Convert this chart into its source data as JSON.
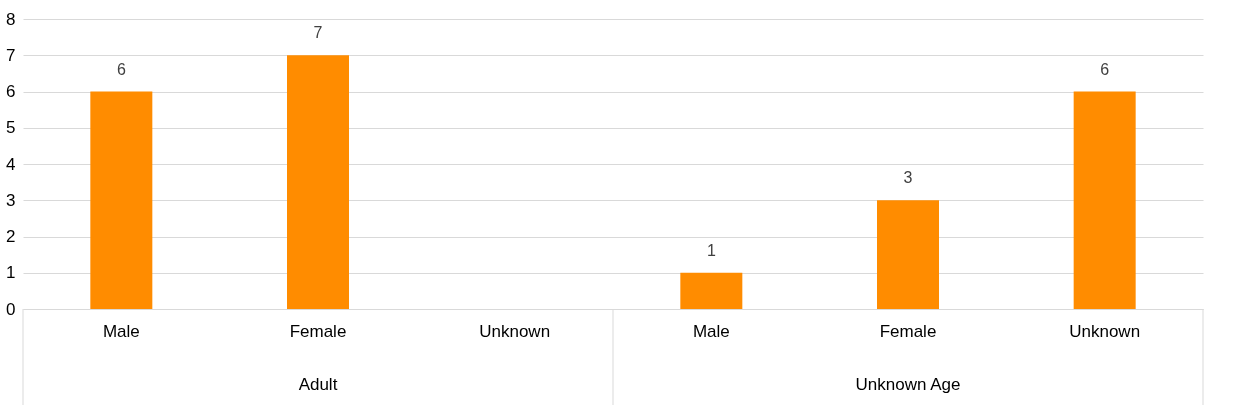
{
  "chart_data": {
    "type": "bar",
    "categories": [
      "Male",
      "Female",
      "Unknown",
      "Male",
      "Female",
      "Unknown"
    ],
    "series": [
      {
        "color": "#ff8c00",
        "values": [
          6,
          7,
          null,
          1,
          3,
          6
        ]
      }
    ],
    "ylim": [
      0,
      8
    ],
    "yticks": [
      0,
      1,
      2,
      3,
      4,
      5,
      6,
      7,
      8
    ],
    "grid": "y",
    "data_labels": true,
    "legend": false,
    "annotations": [
      "Adult",
      "Unknown Age"
    ]
  }
}
